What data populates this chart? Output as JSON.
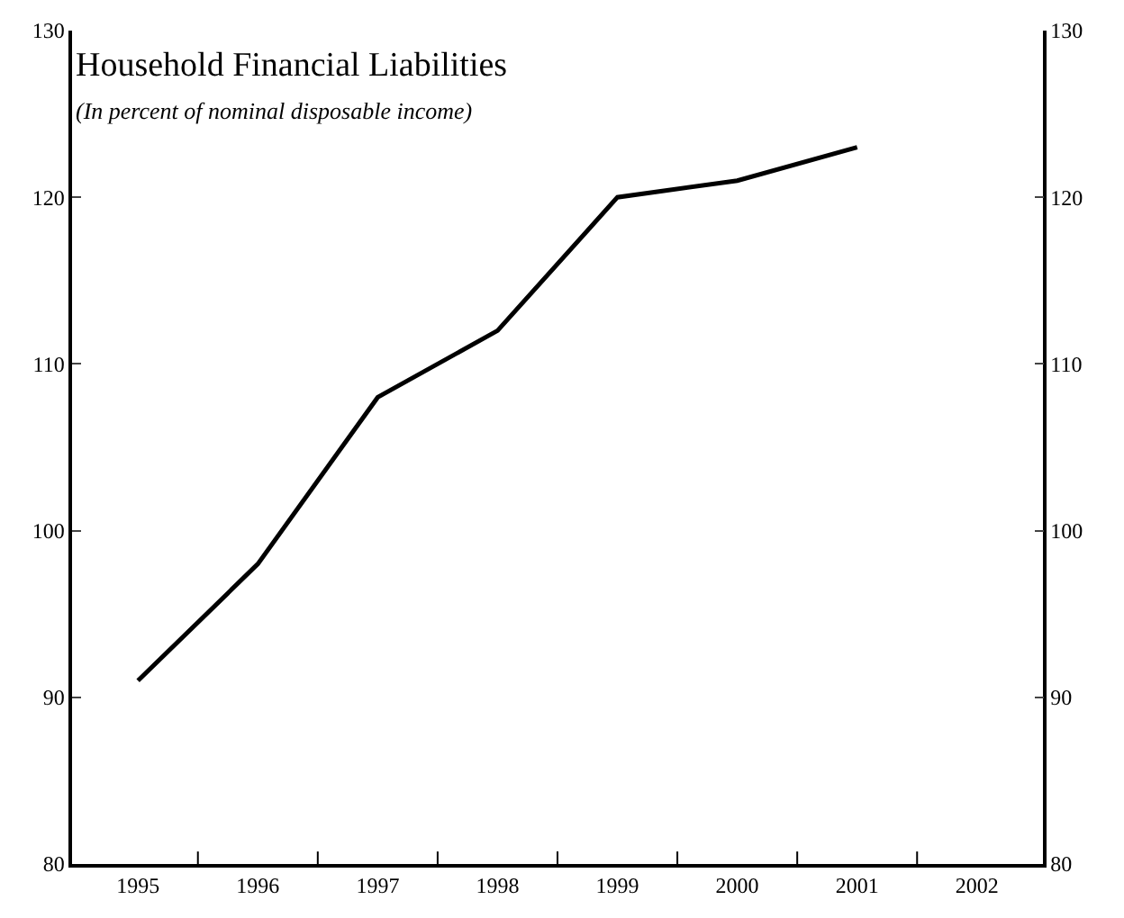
{
  "chart_data": {
    "type": "line",
    "title": "Household Financial Liabilities",
    "subtitle": "(In percent of nominal disposable income)",
    "categories": [
      "1995",
      "1996",
      "1997",
      "1998",
      "1999",
      "2000",
      "2001",
      "2002"
    ],
    "series": [
      {
        "color": "#000000",
        "values": [
          91,
          98,
          108,
          112,
          120,
          121,
          123,
          null
        ]
      }
    ],
    "ylim": [
      80,
      130
    ],
    "yticks": [
      80,
      90,
      100,
      110,
      120,
      130
    ],
    "y2lim": [
      80,
      130
    ],
    "y2ticks": [
      80,
      90,
      100,
      110,
      120,
      130
    ],
    "line_style": "solid"
  }
}
